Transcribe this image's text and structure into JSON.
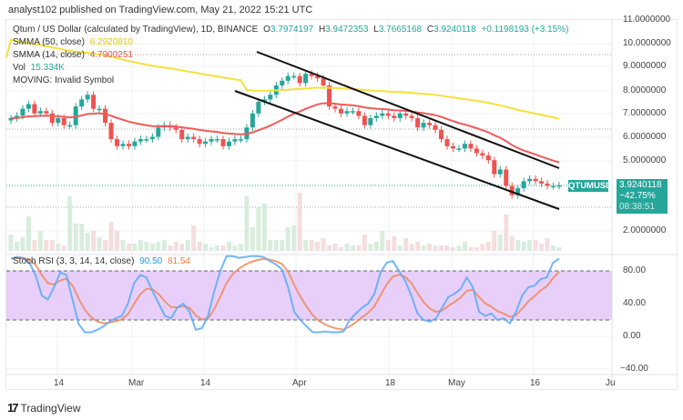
{
  "header": {
    "published": "analyst102 published on TradingView.com, May 21, 2022 15:21 UTC"
  },
  "legend": {
    "symbol_title": "Qtum / US Dollar (calculated by TradingView), 1D, BINANCE",
    "ohlc": {
      "o_label": "O",
      "o": "3.7974197",
      "h_label": "H",
      "h": "3.9472353",
      "l_label": "L",
      "l": "3.7665168",
      "c_label": "C",
      "c": "3.9240118",
      "change": "+0.1198193 (+3.15%)"
    },
    "smma50_label": "SMMA (50, close)",
    "smma50_value": "6.2920810",
    "smma14_label": "SMMA (14, close)",
    "smma14_value": "4.7900251",
    "vol_label": "Vol",
    "vol_value": "15.334K",
    "moving_label": "MOVING: Invalid Symbol",
    "stoch_label": "Stoch RSI (3, 3, 14, 14, close)",
    "stoch_k": "90.50",
    "stoch_d": "81.54"
  },
  "price_tag": {
    "symbol": "QTUMUSD",
    "price": "3.9240118",
    "change_pct": "−42.75%",
    "countdown": "08:38:51"
  },
  "price_axis": [
    "11.0000000",
    "10.0000000",
    "9.0000000",
    "8.0000000",
    "7.0000000",
    "6.0000000",
    "5.0000000",
    "2.0000000"
  ],
  "stoch_axis": [
    "80.00",
    "40.00",
    "0.00",
    "−40.00"
  ],
  "time_axis": [
    "14",
    "Mar",
    "14",
    "Apr",
    "18",
    "May",
    "16",
    "Ju"
  ],
  "footer": {
    "brand": "TradingView",
    "logo_mark": "17"
  },
  "colors": {
    "up": "#26a69a",
    "down": "#ef5350",
    "smma50": "#f5e13a",
    "smma14": "#f05a5a",
    "stoch_k": "#5aa9f7",
    "stoch_d": "#f08a5d",
    "stoch_band": "#e6ccfa",
    "channel": "#111111"
  },
  "chart_data": [
    {
      "type": "candlestick",
      "title": "Qtum / US Dollar (calculated by TradingView), 1D, BINANCE",
      "ylim": [
        1.5,
        11
      ],
      "x_ticks": [
        "14",
        "Mar",
        "14",
        "Apr",
        "18",
        "May",
        "16",
        "Ju"
      ],
      "last": {
        "open": 3.7974197,
        "high": 3.9472353,
        "low": 3.7665168,
        "close": 3.9240118,
        "change": 0.1198193,
        "change_pct": 3.15
      },
      "approx_closes": [
        6.8,
        6.9,
        7.2,
        7.4,
        7.0,
        7.1,
        7.0,
        6.6,
        6.8,
        6.5,
        6.5,
        7.3,
        7.6,
        7.8,
        7.2,
        7.2,
        6.6,
        5.9,
        5.6,
        5.7,
        5.6,
        5.8,
        5.9,
        5.9,
        6.0,
        6.4,
        6.5,
        6.4,
        6.3,
        5.9,
        6.0,
        5.9,
        5.7,
        5.8,
        5.9,
        5.9,
        5.6,
        5.8,
        5.9,
        5.9,
        6.4,
        7.0,
        7.5,
        7.6,
        7.8,
        8.2,
        8.4,
        8.6,
        8.6,
        8.3,
        8.7,
        8.6,
        8.5,
        8.2,
        7.3,
        7.2,
        7.0,
        7.1,
        7.1,
        6.9,
        6.5,
        6.8,
        6.9,
        7.0,
        6.9,
        6.8,
        7.0,
        6.9,
        6.8,
        6.4,
        6.6,
        6.5,
        6.3,
        5.9,
        5.6,
        5.5,
        5.5,
        5.7,
        5.5,
        5.3,
        5.2,
        5.0,
        4.4,
        4.6,
        3.9,
        3.5,
        3.8,
        4.1,
        4.2,
        4.1,
        4.0,
        3.9,
        3.9,
        3.924
      ],
      "series": [
        {
          "name": "SMMA (50, close)",
          "last": 6.292081
        },
        {
          "name": "SMMA (14, close)",
          "last": 4.7900251
        }
      ],
      "annotations": [
        "Descending channel (upper & lower trendlines)"
      ]
    },
    {
      "type": "bar",
      "title": "Vol",
      "last": "15.334K"
    },
    {
      "type": "line",
      "title": "Stoch RSI (3, 3, 14, 14, close)",
      "ylim": [
        -40,
        100
      ],
      "y_ticks": [
        80,
        40,
        0,
        -40
      ],
      "band": [
        20,
        80
      ],
      "series": [
        {
          "name": "%K",
          "last": 90.5
        },
        {
          "name": "%D",
          "last": 81.54
        }
      ]
    }
  ]
}
